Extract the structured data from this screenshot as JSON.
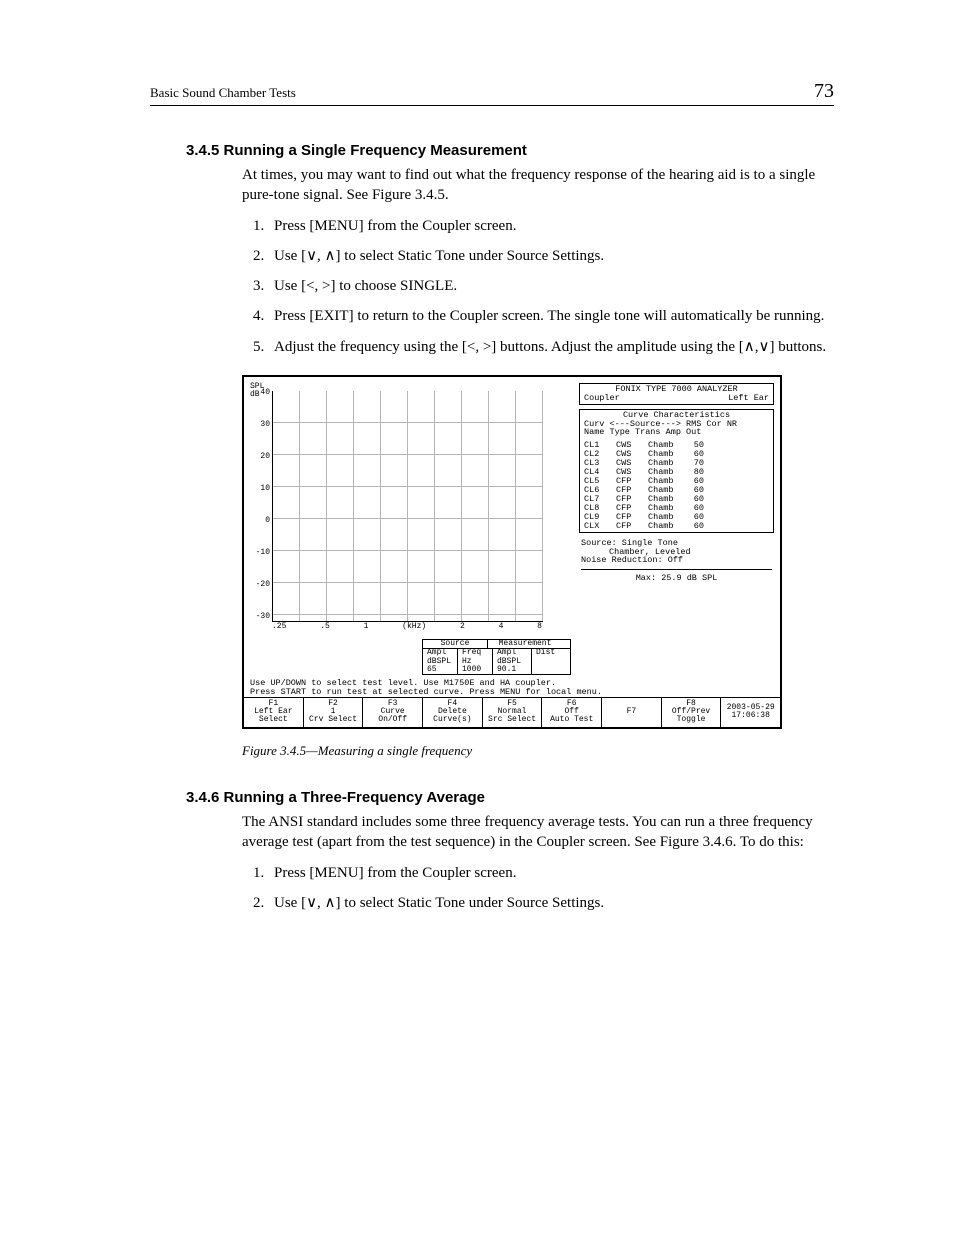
{
  "page": {
    "running_title": "Basic Sound Chamber Tests",
    "page_number": "73"
  },
  "section_345": {
    "heading": "3.4.5 Running a Single Frequency Measurement",
    "intro": "At times, you may want to find out what the frequency response of the hearing aid is to a single pure-tone signal. See Figure 3.4.5.",
    "steps": [
      "Press [MENU] from the Coupler screen.",
      "Use [∨, ∧] to select Static Tone under Source Settings.",
      "Use [<, >] to choose SINGLE.",
      "Press [EXIT] to return to the Coupler screen. The single tone will automatically be running.",
      "Adjust the frequency using the [<, >] buttons. Adjust the amplitude using the [∧,∨] buttons."
    ]
  },
  "figure": {
    "caption": "Figure 3.4.5—Measuring a single frequency",
    "analyzer_title_left": "FONIX TYPE 7000 ANALYZER",
    "coupler_label": "Coupler",
    "ear_label": "Left Ear",
    "curve_char_title": "Curve Characteristics",
    "curve_header_line": "Curv <---Source---> RMS  Cor NR",
    "curve_header_cols": "Name Type Trans Amp    Out",
    "chart": {
      "y_axis_label": "SPL\ndB",
      "y_ticks": [
        "40",
        "30",
        "20",
        "10",
        "0",
        "-10",
        "-20",
        "-30"
      ],
      "x_ticks": [
        ".25",
        ".5",
        "1",
        "(kHz)",
        "2",
        "4",
        "8"
      ],
      "ylim": [
        -30,
        40
      ],
      "grid_color": "#b5b5b5",
      "background_color": "#ffffff"
    },
    "curves": [
      {
        "name": "CL1",
        "type": "CWS",
        "trans": "Chamb",
        "amp": "50"
      },
      {
        "name": "CL2",
        "type": "CWS",
        "trans": "Chamb",
        "amp": "60"
      },
      {
        "name": "CL3",
        "type": "CWS",
        "trans": "Chamb",
        "amp": "70"
      },
      {
        "name": "CL4",
        "type": "CWS",
        "trans": "Chamb",
        "amp": "80"
      },
      {
        "name": "CL5",
        "type": "CFP",
        "trans": "Chamb",
        "amp": "60"
      },
      {
        "name": "CL6",
        "type": "CFP",
        "trans": "Chamb",
        "amp": "60"
      },
      {
        "name": "CL7",
        "type": "CFP",
        "trans": "Chamb",
        "amp": "60"
      },
      {
        "name": "CL8",
        "type": "CFP",
        "trans": "Chamb",
        "amp": "60"
      },
      {
        "name": "CL9",
        "type": "CFP",
        "trans": "Chamb",
        "amp": "60"
      },
      {
        "name": "CLX",
        "type": "CFP",
        "trans": "Chamb",
        "amp": "60"
      }
    ],
    "status_lines": {
      "source": "Source: Single Tone",
      "chamber": "Chamber, Leveled",
      "nr": "Noise Reduction: Off",
      "max": "Max:  25.9 dB SPL"
    },
    "src_meas": {
      "hdr_source": "Source",
      "hdr_meas": "Measurement",
      "r1": [
        "Ampl",
        "Freq",
        "Ampl",
        "Dist"
      ],
      "r2": [
        "dBSPL",
        "Hz",
        "dBSPL",
        ""
      ],
      "r3": [
        "65",
        "1000",
        "90.1",
        ""
      ]
    },
    "help1": "Use UP/DOWN to select test level. Use M1750E and HA coupler.",
    "help2": "Press START to run test at selected curve. Press MENU for local menu.",
    "fkeys": [
      {
        "fn": "F1",
        "l1": "Left Ear",
        "l2": "Select"
      },
      {
        "fn": "F2",
        "l1": "1",
        "l2": "Crv Select"
      },
      {
        "fn": "F3",
        "l1": "Curve",
        "l2": "On/Off"
      },
      {
        "fn": "F4",
        "l1": "Delete",
        "l2": "Curve(s)"
      },
      {
        "fn": "F5",
        "l1": "Normal",
        "l2": "Src Select"
      },
      {
        "fn": "F6",
        "l1": "Off",
        "l2": "Auto Test"
      },
      {
        "fn": "F7",
        "l1": "",
        "l2": ""
      },
      {
        "fn": "F8",
        "l1": "Off/Prev",
        "l2": "Toggle"
      },
      {
        "fn": "",
        "l1": "2003-05-29",
        "l2": "17:06:38"
      }
    ]
  },
  "section_346": {
    "heading": "3.4.6 Running a Three-Frequency Average",
    "intro": "The ANSI standard includes some three frequency average tests. You can run a three frequency average test (apart from the test sequence) in the Coupler screen. See Figure 3.4.6. To do this:",
    "steps": [
      "Press [MENU] from the Coupler screen.",
      "Use [∨, ∧] to select Static Tone under Source Settings."
    ]
  }
}
